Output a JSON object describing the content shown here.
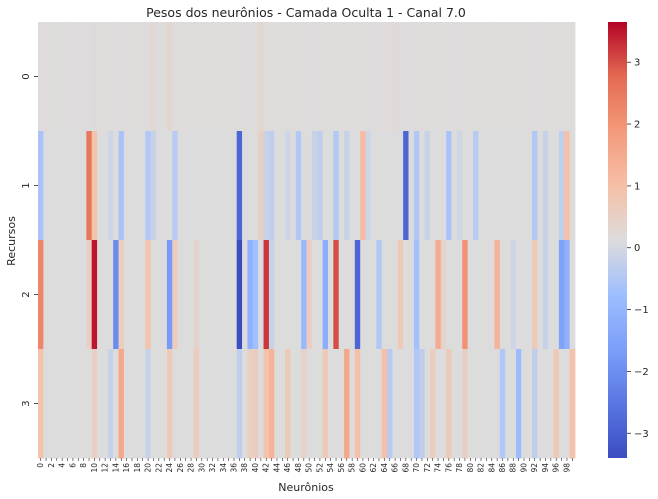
{
  "chart_data": {
    "type": "heatmap",
    "title": "Pesos dos neurônios - Camada Oculta 1 - Canal 7.0",
    "xlabel": "Neurônios",
    "ylabel": "Recursos",
    "row_labels": [
      "0",
      "1",
      "2",
      "3"
    ],
    "column_count": 100,
    "colormap": "coolwarm",
    "vmin": -3.4,
    "vmax": 3.65,
    "colorbar_ticks": [
      -3,
      -2,
      -1,
      0,
      1,
      2,
      3
    ],
    "rows": [
      [
        0.02,
        0.03,
        0.0,
        0.01,
        0.02,
        0.0,
        0.03,
        0.01,
        0.02,
        0.0,
        0.05,
        0.02,
        0.01,
        0.03,
        0.0,
        0.02,
        0.01,
        0.04,
        0.02,
        0.01,
        0.03,
        0.15,
        0.02,
        0.01,
        0.2,
        0.02,
        0.01,
        0.03,
        0.0,
        0.02,
        0.01,
        0.03,
        0.02,
        0.01,
        0.0,
        0.02,
        0.03,
        0.01,
        0.02,
        0.0,
        0.03,
        0.2,
        0.02,
        0.01,
        0.03,
        0.0,
        0.02,
        0.01,
        0.03,
        0.02,
        0.0,
        0.01,
        0.03,
        0.02,
        0.0,
        0.01,
        0.02,
        0.03,
        0.0,
        0.01,
        0.02,
        0.03,
        0.0,
        0.01,
        0.02,
        0.03,
        0.1,
        0.01,
        0.02,
        0.0,
        0.03,
        0.01,
        0.02,
        0.0,
        0.03,
        0.01,
        0.02,
        0.0,
        0.03,
        0.01,
        0.02,
        0.0,
        0.03,
        0.01,
        0.02,
        0.0,
        0.03,
        0.01,
        0.02,
        0.0,
        0.03,
        0.01,
        0.02,
        0.0,
        0.03,
        0.01,
        0.02,
        0.0,
        0.03,
        0.01
      ],
      [
        -0.7,
        0.0,
        0.0,
        0.0,
        0.0,
        0.0,
        0.0,
        0.0,
        0.0,
        2.5,
        0.8,
        0.0,
        0.0,
        -0.2,
        0.0,
        -0.7,
        0.0,
        0.0,
        0.0,
        0.0,
        -0.6,
        -0.3,
        0.0,
        0.0,
        0.0,
        -0.5,
        0.0,
        0.0,
        0.0,
        0.0,
        0.0,
        0.0,
        0.0,
        0.0,
        0.0,
        0.0,
        0.0,
        -2.9,
        0.0,
        0.0,
        0.0,
        0.4,
        -0.3,
        -0.4,
        0.0,
        0.0,
        -0.2,
        0.0,
        -0.6,
        0.0,
        0.0,
        -0.3,
        -0.4,
        0.0,
        0.0,
        -0.6,
        0.0,
        -0.3,
        0.0,
        0.0,
        1.0,
        -0.2,
        0.0,
        0.0,
        0.0,
        0.0,
        0.0,
        0.0,
        -2.9,
        0.0,
        -0.6,
        0.0,
        -0.3,
        0.0,
        0.0,
        0.0,
        -0.7,
        0.0,
        -0.2,
        0.0,
        0.0,
        -0.5,
        0.0,
        0.0,
        0.0,
        0.0,
        0.0,
        0.0,
        0.0,
        0.0,
        0.0,
        0.0,
        -0.6,
        0.0,
        -0.3,
        0.0,
        0.0,
        -0.4,
        0.9,
        0.0
      ],
      [
        2.2,
        0.0,
        0.0,
        0.0,
        0.0,
        0.0,
        0.0,
        0.0,
        0.0,
        0.4,
        3.5,
        0.0,
        0.0,
        0.0,
        -2.1,
        0.5,
        0.0,
        0.0,
        0.0,
        0.0,
        0.8,
        0.0,
        0.0,
        0.0,
        -1.8,
        0.5,
        0.0,
        0.0,
        0.0,
        0.3,
        0.0,
        0.0,
        0.0,
        0.0,
        0.0,
        0.0,
        0.0,
        -3.4,
        0.0,
        -1.2,
        -0.8,
        0.0,
        3.2,
        -0.3,
        0.0,
        0.0,
        0.0,
        0.0,
        0.0,
        -1.0,
        0.5,
        0.0,
        0.0,
        -1.3,
        0.0,
        3.0,
        0.0,
        0.0,
        0.0,
        -2.9,
        0.0,
        0.0,
        0.0,
        -0.6,
        0.0,
        0.0,
        0.0,
        0.6,
        0.0,
        0.0,
        -0.8,
        0.0,
        0.0,
        0.0,
        1.4,
        0.3,
        0.0,
        0.0,
        0.0,
        2.0,
        0.0,
        0.0,
        0.0,
        0.0,
        0.0,
        1.2,
        0.0,
        0.0,
        -0.2,
        0.0,
        0.0,
        0.0,
        0.6,
        0.0,
        -0.3,
        0.0,
        0.0,
        -1.6,
        -1.2,
        0.0
      ],
      [
        0.8,
        0.0,
        0.0,
        0.0,
        0.0,
        0.0,
        0.0,
        0.0,
        0.0,
        0.0,
        0.4,
        0.0,
        0.0,
        -0.3,
        0.0,
        1.5,
        0.0,
        0.0,
        0.0,
        0.0,
        -0.3,
        0.0,
        0.0,
        0.0,
        0.6,
        0.0,
        0.0,
        0.0,
        0.0,
        0.5,
        0.0,
        0.0,
        0.0,
        0.0,
        0.0,
        0.0,
        0.0,
        -0.4,
        0.0,
        0.4,
        0.5,
        0.0,
        0.8,
        1.2,
        0.0,
        0.0,
        0.6,
        0.0,
        0.0,
        0.3,
        0.0,
        0.0,
        0.0,
        0.6,
        0.0,
        0.0,
        0.0,
        1.5,
        0.0,
        0.9,
        0.0,
        0.0,
        0.0,
        0.0,
        0.9,
        -0.5,
        0.0,
        0.0,
        0.0,
        0.0,
        -0.6,
        -0.4,
        0.0,
        0.5,
        0.0,
        0.0,
        0.6,
        0.0,
        0.0,
        0.4,
        0.0,
        0.0,
        0.0,
        0.0,
        0.0,
        0.0,
        -0.6,
        0.0,
        0.0,
        -0.9,
        0.0,
        0.0,
        -0.4,
        0.0,
        0.0,
        0.0,
        0.6,
        0.0,
        0.0,
        0.8
      ]
    ]
  }
}
